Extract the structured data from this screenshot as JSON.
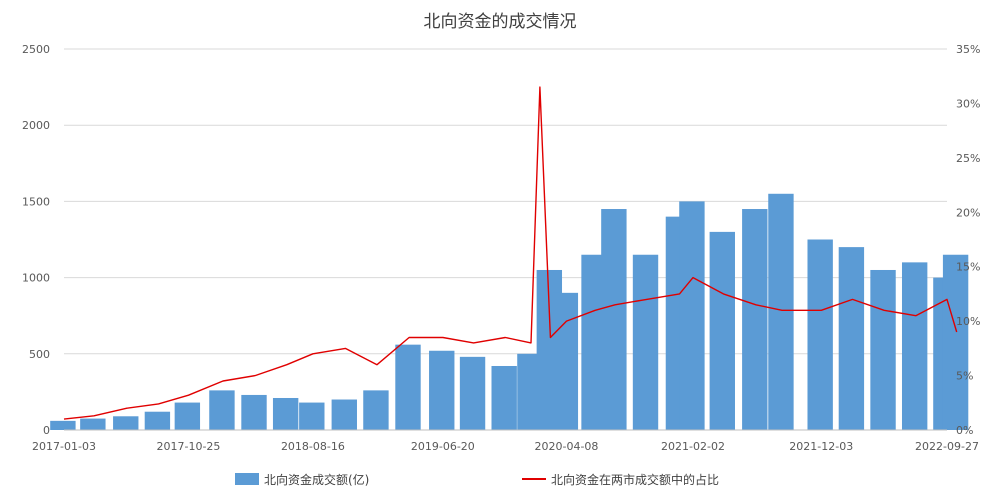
{
  "chart_data": {
    "type": "bar-line-combo",
    "title": "北向资金的成交情况",
    "x_tick_labels": [
      "2017-01-03",
      "2017-10-25",
      "2018-08-16",
      "2019-06-20",
      "2020-04-08",
      "2021-02-02",
      "2021-12-03",
      "2022-09-27"
    ],
    "left_axis": {
      "ylim": [
        0,
        2500
      ],
      "ticks": [
        "0",
        "500",
        "1000",
        "1500",
        "2000",
        "2500"
      ]
    },
    "right_axis": {
      "ylim": [
        0,
        35
      ],
      "unit": "%",
      "ticks": [
        "0%",
        "5%",
        "10%",
        "15%",
        "20%",
        "25%",
        "30%",
        "35%"
      ]
    },
    "grid": true,
    "legend_position": "bottom",
    "colors": {
      "bars": "#5b9bd5",
      "line": "#e00000"
    },
    "series": [
      {
        "name": "北向资金成交额(亿)",
        "type": "bar",
        "axis": "left",
        "x": [
          "2017-01-03",
          "2017-03-15",
          "2017-06-01",
          "2017-08-15",
          "2017-10-25",
          "2018-01-15",
          "2018-04-01",
          "2018-06-15",
          "2018-08-16",
          "2018-11-01",
          "2019-01-15",
          "2019-04-01",
          "2019-06-20",
          "2019-09-01",
          "2019-11-15",
          "2020-01-15",
          "2020-03-01",
          "2020-04-08",
          "2020-06-15",
          "2020-08-01",
          "2020-10-15",
          "2021-01-01",
          "2021-02-02",
          "2021-04-15",
          "2021-07-01",
          "2021-09-01",
          "2021-12-03",
          "2022-02-15",
          "2022-05-01",
          "2022-07-15",
          "2022-09-27",
          "2022-10-20"
        ],
        "values": [
          60,
          75,
          90,
          120,
          180,
          260,
          230,
          210,
          180,
          200,
          260,
          560,
          520,
          480,
          420,
          500,
          1050,
          900,
          1150,
          1450,
          1150,
          1400,
          1500,
          1300,
          1450,
          1550,
          1250,
          1200,
          1050,
          1100,
          1000,
          1150
        ]
      },
      {
        "name": "北向资金在两市成交额中的占比",
        "type": "line",
        "axis": "right",
        "unit": "%",
        "x": [
          "2017-01-03",
          "2017-03-15",
          "2017-06-01",
          "2017-08-15",
          "2017-10-25",
          "2018-01-15",
          "2018-04-01",
          "2018-06-15",
          "2018-08-16",
          "2018-11-01",
          "2019-01-15",
          "2019-04-01",
          "2019-06-20",
          "2019-09-01",
          "2019-11-15",
          "2020-01-15",
          "2020-02-05",
          "2020-03-01",
          "2020-04-08",
          "2020-06-15",
          "2020-08-01",
          "2020-10-15",
          "2021-01-01",
          "2021-02-02",
          "2021-04-15",
          "2021-07-01",
          "2021-09-01",
          "2021-12-03",
          "2022-02-15",
          "2022-05-01",
          "2022-07-15",
          "2022-09-27",
          "2022-10-20"
        ],
        "values": [
          1.0,
          1.3,
          2.0,
          2.4,
          3.2,
          4.5,
          5.0,
          6.0,
          7.0,
          7.5,
          6.0,
          8.5,
          8.5,
          8.0,
          8.5,
          8.0,
          31.5,
          8.5,
          10.0,
          11.0,
          11.5,
          12.0,
          12.5,
          14.0,
          12.5,
          11.5,
          11.0,
          11.0,
          12.0,
          11.0,
          10.5,
          12.0,
          9.0
        ]
      }
    ],
    "legend": [
      "北向资金成交额(亿)",
      "北向资金在两市成交额中的占比"
    ]
  }
}
